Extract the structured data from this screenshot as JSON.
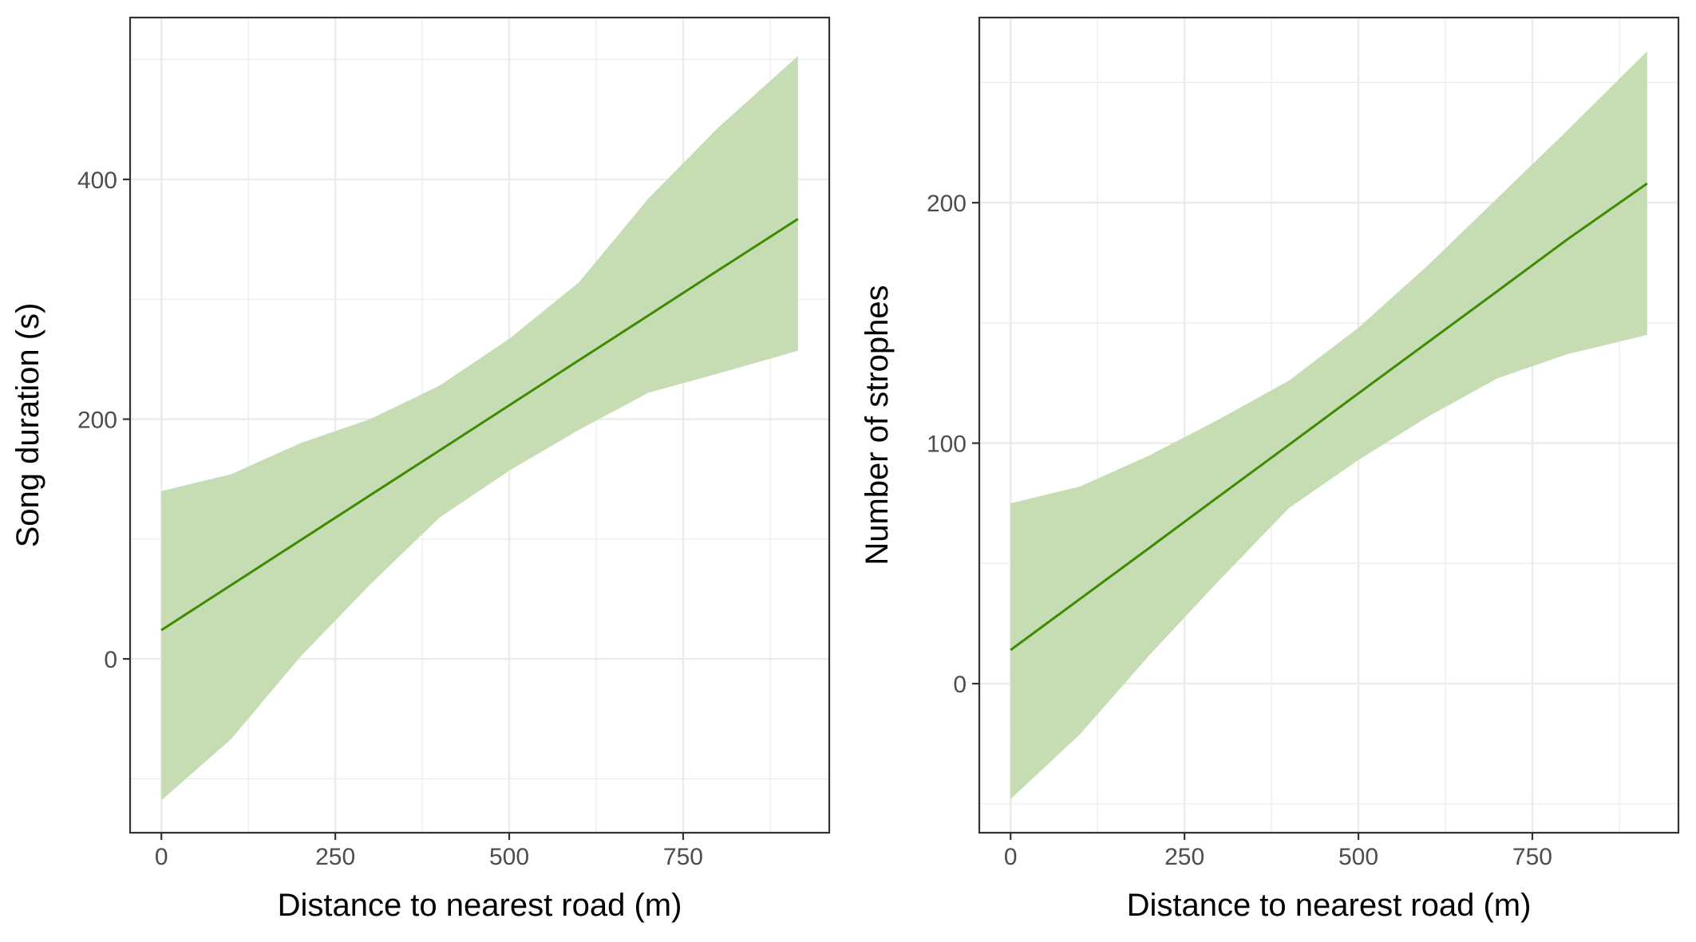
{
  "chart_data": [
    {
      "type": "line",
      "title": "",
      "xlabel": "Distance to nearest road (m)",
      "ylabel": "Song duration (s)",
      "xlim": [
        -45,
        960
      ],
      "ylim": [
        -145,
        535
      ],
      "x_ticks": [
        0,
        250,
        500,
        750
      ],
      "y_ticks": [
        0,
        200,
        400
      ],
      "grid": true,
      "legend": "none",
      "line_color": "#3d8b00",
      "band_color": "#c6ddb4",
      "series": [
        {
          "x": [
            0,
            100,
            200,
            300,
            400,
            500,
            600,
            700,
            800,
            915
          ],
          "y": [
            24,
            61.5,
            99,
            136.5,
            174,
            211.5,
            249,
            286.5,
            324,
            367
          ],
          "lower": [
            -118,
            -67,
            2,
            62,
            118,
            157,
            191,
            222,
            238,
            257
          ],
          "upper": [
            140,
            154,
            180,
            200,
            228,
            267,
            314,
            384,
            443,
            503
          ]
        }
      ]
    },
    {
      "type": "line",
      "title": "",
      "xlabel": "Distance to nearest road (m)",
      "ylabel": "Number of strophes",
      "xlim": [
        -45,
        960
      ],
      "ylim": [
        -62,
        277
      ],
      "x_ticks": [
        0,
        250,
        500,
        750
      ],
      "y_ticks": [
        0,
        100,
        200
      ],
      "grid": true,
      "legend": "none",
      "line_color": "#3d8b00",
      "band_color": "#c6ddb4",
      "series": [
        {
          "x": [
            0,
            100,
            200,
            300,
            400,
            500,
            600,
            700,
            800,
            915
          ],
          "y": [
            14,
            35.3,
            56.6,
            78,
            99.3,
            120.7,
            142,
            163.3,
            184.7,
            208
          ],
          "lower": [
            -48,
            -21,
            12,
            43,
            73,
            93,
            111,
            127,
            137,
            145
          ],
          "upper": [
            75,
            82,
            95,
            110,
            126,
            148,
            174,
            202,
            230,
            263
          ]
        }
      ]
    }
  ]
}
